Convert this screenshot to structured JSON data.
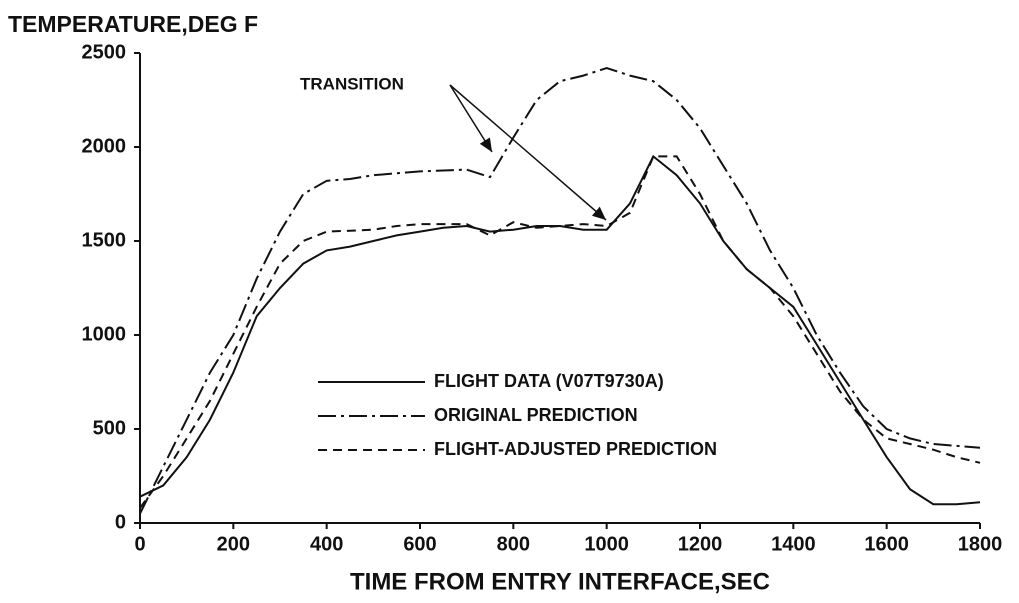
{
  "chart_data": {
    "type": "line",
    "title": "TEMPERATURE,DEG F",
    "x_label": "TIME FROM ENTRY INTERFACE,SEC",
    "annotation": "TRANSITION",
    "x": [
      0,
      50,
      100,
      150,
      200,
      250,
      300,
      350,
      400,
      450,
      500,
      550,
      600,
      650,
      700,
      750,
      800,
      850,
      900,
      950,
      1000,
      1050,
      1100,
      1150,
      1200,
      1250,
      1300,
      1350,
      1400,
      1450,
      1500,
      1550,
      1600,
      1650,
      1700,
      1750,
      1800
    ],
    "series": [
      {
        "name": "FLIGHT DATA  (V07T9730A)",
        "color": "#111111",
        "linestyle": "solid",
        "values": [
          140,
          200,
          350,
          550,
          800,
          1100,
          1250,
          1380,
          1450,
          1470,
          1500,
          1530,
          1550,
          1570,
          1580,
          1550,
          1560,
          1580,
          1580,
          1560,
          1560,
          1700,
          1950,
          1850,
          1700,
          1500,
          1350,
          1250,
          1150,
          950,
          750,
          550,
          350,
          180,
          100,
          100,
          110
        ]
      },
      {
        "name": "ORIGINAL PREDICTION",
        "color": "#111111",
        "linestyle": "dashdot",
        "values": [
          50,
          300,
          550,
          800,
          1000,
          1300,
          1550,
          1750,
          1820,
          1830,
          1850,
          1860,
          1870,
          1875,
          1880,
          1840,
          2050,
          2250,
          2350,
          2380,
          2420,
          2380,
          2350,
          2250,
          2100,
          1900,
          1700,
          1450,
          1250,
          1000,
          800,
          620,
          500,
          450,
          420,
          410,
          400
        ]
      },
      {
        "name": "FLIGHT-ADJUSTED PREDICTION",
        "color": "#111111",
        "linestyle": "dashed",
        "values": [
          80,
          250,
          450,
          650,
          900,
          1150,
          1380,
          1500,
          1550,
          1555,
          1560,
          1580,
          1590,
          1590,
          1590,
          1530,
          1600,
          1570,
          1580,
          1590,
          1580,
          1650,
          1950,
          1950,
          1750,
          1500,
          1350,
          1250,
          1100,
          900,
          700,
          550,
          450,
          420,
          390,
          350,
          320
        ]
      }
    ],
    "xlim": [
      0,
      1800
    ],
    "xticks": [
      0,
      200,
      400,
      600,
      800,
      1000,
      1200,
      1400,
      1600,
      1800
    ],
    "ylim": [
      0,
      2500
    ],
    "yticks": [
      0,
      500,
      1000,
      1500,
      2000,
      2500
    ]
  }
}
